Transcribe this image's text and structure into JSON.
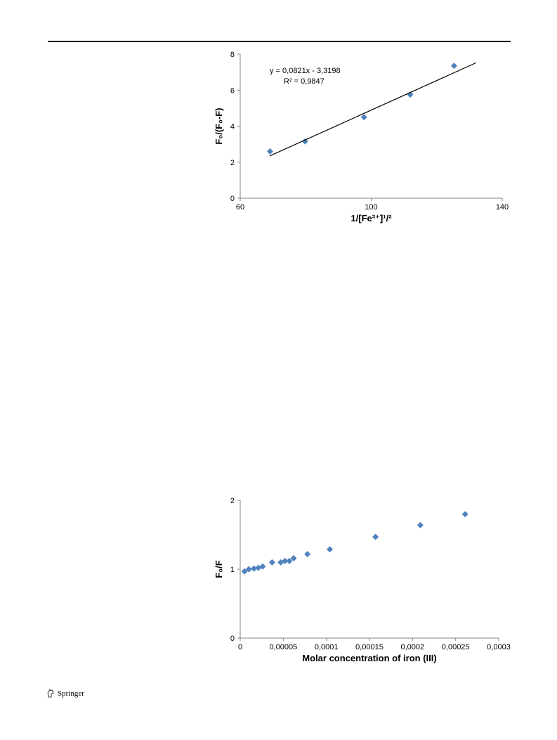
{
  "colors": {
    "marker": "#4f81bd",
    "axis": "#868686",
    "trendline": "#000000"
  },
  "footer": {
    "publisher": "Springer",
    "icon": "springer-horse-icon"
  },
  "chart_data": [
    {
      "type": "scatter",
      "title": "",
      "xlabel": "1/[Fe³⁺]¹/²",
      "ylabel": "F₀/(F₀-F)",
      "xlim": [
        60,
        140
      ],
      "ylim": [
        0,
        8
      ],
      "xticks": [
        "60",
        "100",
        "140"
      ],
      "yticks": [
        "0",
        "2",
        "4",
        "6",
        "8"
      ],
      "grid": false,
      "legend": "none",
      "series": [
        {
          "x": [
            69.1,
            79.8,
            97.8,
            111.9,
            125.3
          ],
          "y": [
            2.6,
            3.15,
            4.5,
            5.75,
            7.35
          ]
        }
      ],
      "trendline": {
        "x_start": 69.0,
        "x_end": 132.0,
        "equation": "y = 0,0821x - 3,3198",
        "r2": "R² = 0,9847"
      }
    },
    {
      "type": "scatter",
      "title": "",
      "xlabel": "Molar concentration of iron (III)",
      "ylabel": "F₀/F",
      "xlim": [
        0,
        0.0003
      ],
      "ylim": [
        0,
        2
      ],
      "xticks": [
        "0",
        "0,00005",
        "0,0001",
        "0,00015",
        "0,0002",
        "0,00025",
        "0,0003"
      ],
      "yticks": [
        "0",
        "1",
        "2"
      ],
      "grid": false,
      "legend": "none",
      "series": [
        {
          "x": [
            5e-06,
            1e-05,
            1.6e-05,
            2.1e-05,
            2.6e-05,
            3.7e-05,
            4.7e-05,
            5.2e-05,
            5.7e-05,
            6.2e-05,
            7.8e-05,
            0.000104,
            0.000157,
            0.000209,
            0.000261
          ],
          "y": [
            0.97,
            1.0,
            1.01,
            1.02,
            1.04,
            1.1,
            1.1,
            1.12,
            1.12,
            1.16,
            1.22,
            1.29,
            1.47,
            1.64,
            1.8
          ]
        }
      ]
    }
  ]
}
